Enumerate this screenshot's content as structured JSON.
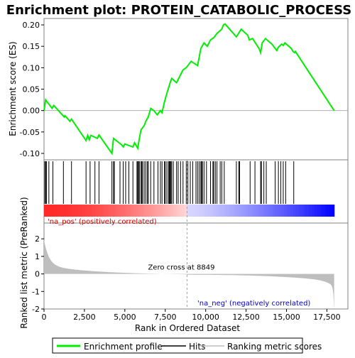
{
  "chart_data": {
    "type": "line",
    "title": "Enrichment plot: PROTEIN_CATABOLIC_PROCESS",
    "xlabel": "Rank in Ordered Dataset",
    "ylabel_top": "Enrichment score (ES)",
    "ylabel_bottom": "Ranked list metric (PreRanked)",
    "xlim": [
      0,
      18800
    ],
    "x_ticks": [
      0,
      2500,
      5000,
      7500,
      10000,
      12500,
      15000,
      17500
    ],
    "x_tick_labels": [
      "0",
      "2,500",
      "5,000",
      "7,500",
      "10,000",
      "12,500",
      "15,000",
      "17,500"
    ],
    "es_ylim": [
      -0.115,
      0.215
    ],
    "es_ticks": [
      -0.1,
      -0.05,
      0.0,
      0.05,
      0.1,
      0.15,
      0.2
    ],
    "es_tick_labels": [
      "-0.10",
      "-0.05",
      "0.00",
      "0.05",
      "0.10",
      "0.15",
      "0.20"
    ],
    "metric_ylim": [
      -2.0,
      2.9
    ],
    "metric_ticks": [
      -2,
      -1,
      0,
      1,
      2
    ],
    "metric_tick_labels": [
      "-2",
      "-1",
      "0",
      "1",
      "2"
    ],
    "zero_cross": 8849,
    "zero_cross_label": "Zero cross at 8849",
    "pos_label": "'na_pos' (positively correlated)",
    "neg_label": "'na_neg' (negatively correlated)",
    "legend": [
      "Enrichment profile",
      "Hits",
      "Ranking metric scores"
    ],
    "colors": {
      "profile": "#00ee00",
      "hits": "#000000",
      "metric": "#bebebe",
      "pos_text": "#cc0000",
      "neg_text": "#0000cc",
      "heat_pos": "#ff0000",
      "heat_neg": "#0000ff"
    },
    "enrichment_profile": [
      [
        0,
        0.0
      ],
      [
        100,
        0.025
      ],
      [
        500,
        0.005
      ],
      [
        600,
        0.012
      ],
      [
        1250,
        -0.015
      ],
      [
        1300,
        -0.012
      ],
      [
        1600,
        -0.025
      ],
      [
        1700,
        -0.02
      ],
      [
        2600,
        -0.07
      ],
      [
        2700,
        -0.058
      ],
      [
        2800,
        -0.068
      ],
      [
        2900,
        -0.058
      ],
      [
        3300,
        -0.065
      ],
      [
        3400,
        -0.057
      ],
      [
        4200,
        -0.1
      ],
      [
        4300,
        -0.065
      ],
      [
        4800,
        -0.08
      ],
      [
        4900,
        -0.085
      ],
      [
        5000,
        -0.078
      ],
      [
        5500,
        -0.085
      ],
      [
        5600,
        -0.075
      ],
      [
        5800,
        -0.088
      ],
      [
        5900,
        -0.065
      ],
      [
        6000,
        -0.045
      ],
      [
        6200,
        -0.035
      ],
      [
        6300,
        -0.025
      ],
      [
        6450,
        -0.015
      ],
      [
        6600,
        0.005
      ],
      [
        6800,
        0.0
      ],
      [
        7000,
        -0.01
      ],
      [
        7200,
        0.0
      ],
      [
        7300,
        -0.005
      ],
      [
        7450,
        0.02
      ],
      [
        7600,
        0.04
      ],
      [
        7800,
        0.065
      ],
      [
        7900,
        0.075
      ],
      [
        8200,
        0.065
      ],
      [
        8400,
        0.08
      ],
      [
        8600,
        0.095
      ],
      [
        8800,
        0.1
      ],
      [
        9000,
        0.11
      ],
      [
        9100,
        0.115
      ],
      [
        9300,
        0.11
      ],
      [
        9500,
        0.105
      ],
      [
        9600,
        0.125
      ],
      [
        9700,
        0.145
      ],
      [
        9900,
        0.158
      ],
      [
        10100,
        0.15
      ],
      [
        10300,
        0.165
      ],
      [
        10500,
        0.17
      ],
      [
        10700,
        0.18
      ],
      [
        10850,
        0.185
      ],
      [
        11000,
        0.19
      ],
      [
        11100,
        0.2
      ],
      [
        11200,
        0.202
      ],
      [
        11900,
        0.172
      ],
      [
        12000,
        0.178
      ],
      [
        12200,
        0.19
      ],
      [
        12600,
        0.176
      ],
      [
        12700,
        0.165
      ],
      [
        12900,
        0.168
      ],
      [
        13300,
        0.145
      ],
      [
        13400,
        0.135
      ],
      [
        13500,
        0.158
      ],
      [
        13700,
        0.168
      ],
      [
        14100,
        0.155
      ],
      [
        14400,
        0.14
      ],
      [
        14500,
        0.148
      ],
      [
        14700,
        0.155
      ],
      [
        14800,
        0.152
      ],
      [
        14900,
        0.158
      ],
      [
        15300,
        0.145
      ],
      [
        15400,
        0.138
      ],
      [
        15500,
        0.135
      ],
      [
        15550,
        0.138
      ],
      [
        17950,
        0.0
      ]
    ],
    "hits": [
      50,
      100,
      150,
      300,
      550,
      1200,
      1700,
      2600,
      2850,
      3150,
      3400,
      4200,
      4300,
      4350,
      4700,
      4900,
      5050,
      5250,
      5500,
      5750,
      5800,
      5850,
      5900,
      6000,
      6050,
      6100,
      6200,
      6300,
      6400,
      6450,
      6600,
      6800,
      7050,
      7200,
      7300,
      7450,
      7500,
      7600,
      7700,
      7750,
      7800,
      7850,
      7900,
      8000,
      8200,
      8300,
      8450,
      8600,
      8800,
      8900,
      9050,
      9200,
      9400,
      9500,
      9600,
      9700,
      9750,
      9800,
      9900,
      10050,
      10300,
      10450,
      10500,
      10600,
      10700,
      10900,
      11000,
      11150,
      11900,
      12050,
      12100,
      12750,
      13050,
      13400,
      13450,
      13600,
      13750,
      14300,
      14500,
      14650,
      14800,
      14950,
      15450
    ]
  }
}
